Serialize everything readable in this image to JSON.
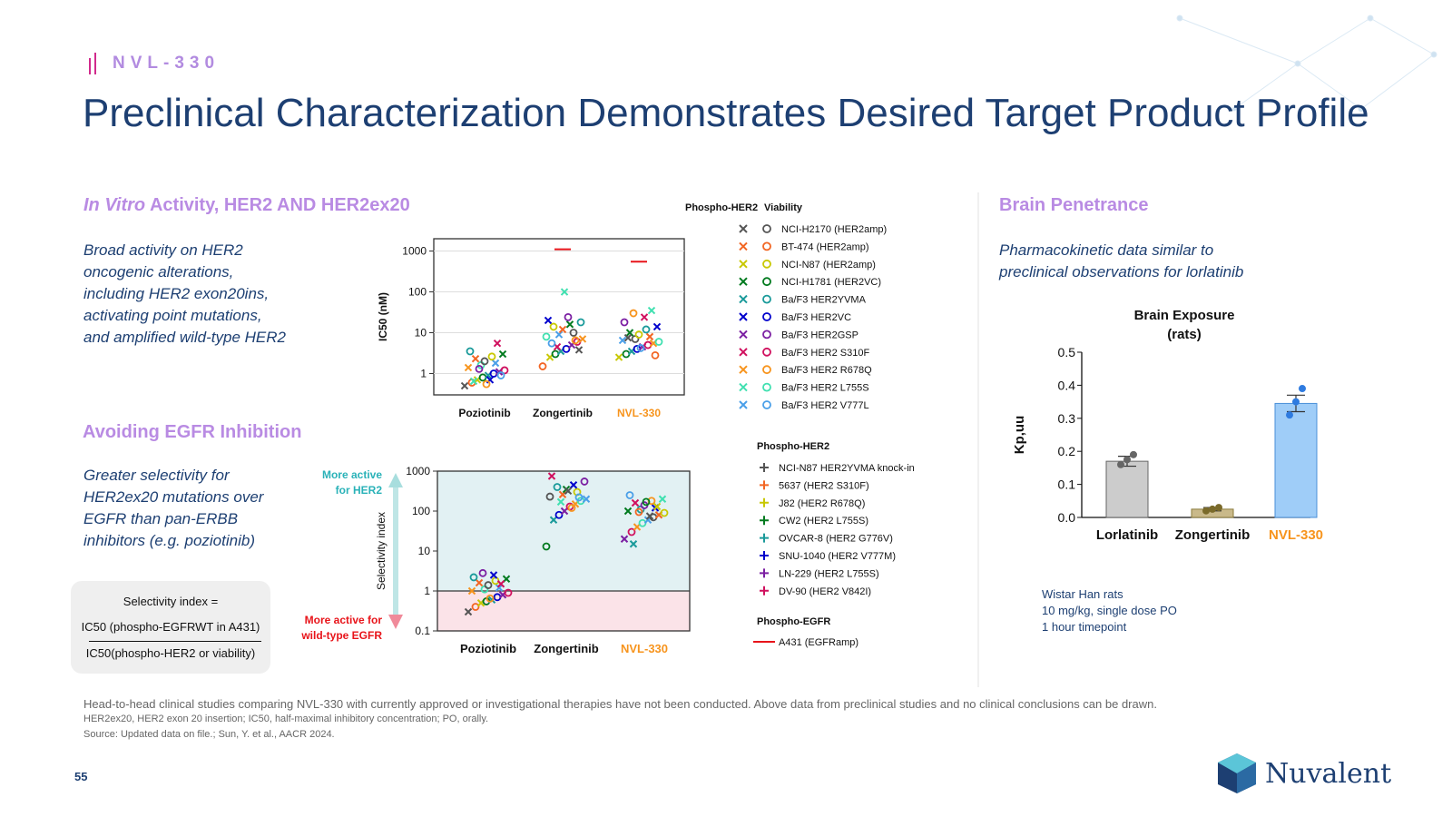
{
  "header": {
    "brand": "NVL-330",
    "title": "Preclinical Characterization Demonstrates Desired Target Product Profile"
  },
  "invitro": {
    "heading_italic": "In Vitro",
    "heading_rest": " Activity, HER2 AND HER2ex20",
    "desc_lines": [
      "Broad activity on HER2",
      "oncogenic alterations,",
      "including HER2 exon20ins,",
      "activating point mutations,",
      "and amplified wild-type HER2"
    ]
  },
  "egfr": {
    "heading": "Avoiding EGFR Inhibition",
    "desc_lines": [
      "Greater selectivity for",
      "HER2ex20 mutations over",
      "EGFR than pan-ERBB",
      "inhibitors (e.g. poziotinib)"
    ],
    "formula": {
      "line1": "Selectivity index =",
      "numerator": "IC50 (phospho-EGFRWT in A431)",
      "denominator": "IC50(phospho-HER2 or viability)"
    }
  },
  "brain": {
    "heading": "Brain Penetrance",
    "desc_lines": [
      "Pharmacokinetic data similar to",
      "preclinical observations for lorlatinib"
    ],
    "notes": [
      "Wistar Han rats",
      "10 mg/kg, single dose PO",
      "1 hour timepoint"
    ]
  },
  "legend": {
    "header_phospho": "Phospho-HER2",
    "header_viability": "Viability",
    "cell_lines": [
      {
        "label": "NCI-H2170 (HER2amp)",
        "color": "#555555"
      },
      {
        "label": "BT-474 (HER2amp)",
        "color": "#f26522"
      },
      {
        "label": "NCI-N87 (HER2amp)",
        "color": "#c8c800"
      },
      {
        "label": "NCI-H1781 (HER2VC)",
        "color": "#007a1e"
      },
      {
        "label": "Ba/F3 HER2YVMA",
        "color": "#1a9a9a"
      },
      {
        "label": "Ba/F3 HER2VC",
        "color": "#0000cc"
      },
      {
        "label": "Ba/F3 HER2GSP",
        "color": "#7b1fa2"
      },
      {
        "label": "Ba/F3 HER2 S310F",
        "color": "#d0105e"
      },
      {
        "label": "Ba/F3 HER2 R678Q",
        "color": "#f7941d"
      },
      {
        "label": "Ba/F3 HER2 L755S",
        "color": "#40e0b0"
      },
      {
        "label": "Ba/F3 HER2 V777L",
        "color": "#4a9fe8"
      }
    ],
    "phospho_her2_header": "Phospho-HER2",
    "phospho_her2_lines": [
      {
        "label": "NCI-N87 HER2YVMA knock-in",
        "color": "#555555"
      },
      {
        "label": "5637 (HER2 S310F)",
        "color": "#f26522"
      },
      {
        "label": "J82 (HER2 R678Q)",
        "color": "#c8c800"
      },
      {
        "label": "CW2 (HER2 L755S)",
        "color": "#007a1e"
      },
      {
        "label": "OVCAR-8 (HER2 G776V)",
        "color": "#1a9a9a"
      },
      {
        "label": "SNU-1040 (HER2 V777M)",
        "color": "#0000cc"
      },
      {
        "label": "LN-229 (HER2 L755S)",
        "color": "#7b1fa2"
      },
      {
        "label": "DV-90 (HER2 V842I)",
        "color": "#d0105e"
      }
    ],
    "phospho_egfr_header": "Phospho-EGFR",
    "phospho_egfr_line": {
      "label": "A431 (EGFRamp)",
      "color": "#e8141a"
    }
  },
  "chart_data": [
    {
      "type": "scatter",
      "ylabel": "IC50 (nM)",
      "yscale": "log",
      "ylim": [
        0.3,
        2000
      ],
      "yticks": [
        "1000",
        "100",
        "10",
        "1"
      ],
      "categories": [
        "Poziotinib",
        "Zongertinib",
        "NVL-330"
      ],
      "highlight_category": "NVL-330",
      "egfr_ic50": [
        null,
        1100,
        550
      ],
      "points": {
        "Poziotinib": [
          0.5,
          0.6,
          0.7,
          0.8,
          0.9,
          1.0,
          1.1,
          1.2,
          1.4,
          1.6,
          1.8,
          2.0,
          2.3,
          2.6,
          3.0,
          3.5,
          0.7,
          1.3,
          5.5,
          0.55,
          0.65,
          0.9
        ],
        "Zongertinib": [
          1.5,
          2.5,
          3,
          3.5,
          4,
          5,
          6,
          7,
          8,
          9,
          10,
          12,
          14,
          16,
          18,
          20,
          24,
          4.5,
          6.5,
          100,
          5.5,
          3.8
        ],
        "NVL-330": [
          2.5,
          3,
          3.5,
          4,
          4.5,
          5,
          5.5,
          6,
          6.5,
          7,
          8,
          9,
          10,
          12,
          14,
          18,
          24,
          30,
          35,
          4.2,
          7.5,
          2.8
        ]
      }
    },
    {
      "type": "scatter",
      "ylabel": "Selectivity index",
      "yscale": "log",
      "ylim": [
        0.1,
        1000
      ],
      "yticks": [
        "1000",
        "100",
        "10",
        "1",
        "0.1"
      ],
      "categories": [
        "Poziotinib",
        "Zongertinib",
        "NVL-330"
      ],
      "highlight_category": "NVL-330",
      "annotation_up": "More active\nfor HER2",
      "annotation_down": "More active for\nwild-type EGFR",
      "points": {
        "Poziotinib": [
          0.3,
          0.4,
          0.5,
          0.55,
          0.6,
          0.7,
          0.8,
          0.9,
          1.0,
          1.1,
          1.2,
          1.4,
          1.6,
          1.8,
          2.0,
          2.2,
          2.5,
          2.8,
          1.5,
          0.65
        ],
        "Zongertinib": [
          13,
          60,
          80,
          100,
          130,
          150,
          180,
          200,
          230,
          260,
          300,
          350,
          400,
          450,
          550,
          750,
          120,
          170,
          220,
          320
        ],
        "NVL-330": [
          20,
          30,
          40,
          50,
          60,
          70,
          80,
          90,
          100,
          110,
          120,
          140,
          160,
          180,
          200,
          250,
          75,
          95,
          130,
          170,
          15
        ]
      }
    },
    {
      "type": "bar",
      "title": "Brain Exposure\n(rats)",
      "ylabel": "Kp,uu",
      "ylim": [
        0,
        0.5
      ],
      "yticks": [
        "0.5",
        "0.4",
        "0.3",
        "0.2",
        "0.1",
        "0.0"
      ],
      "categories": [
        "Lorlatinib",
        "Zongertinib",
        "NVL-330"
      ],
      "values": [
        0.17,
        0.025,
        0.345
      ],
      "errors": [
        0.015,
        0.005,
        0.025
      ],
      "points": [
        [
          0.16,
          0.175,
          0.19
        ],
        [
          0.02,
          0.025,
          0.03
        ],
        [
          0.31,
          0.35,
          0.39
        ]
      ],
      "colors": [
        "#cccccc",
        "#c9b98a",
        "#9fcdf8"
      ],
      "highlight_category": "NVL-330"
    }
  ],
  "footer": {
    "disclaimer": "Head-to-head clinical studies comparing NVL-330 with currently approved or investigational therapies have not been conducted. Above data from preclinical studies and no clinical conclusions can be drawn.",
    "abbrev": "HER2ex20, HER2 exon 20 insertion; IC50, half-maximal inhibitory concentration; PO, orally.",
    "source": "Source: Updated data on file.; Sun, Y. et al., AACR 2024.",
    "page_number": "55",
    "logo_text": "Nuvalent"
  },
  "accent_color": "#f7941d"
}
